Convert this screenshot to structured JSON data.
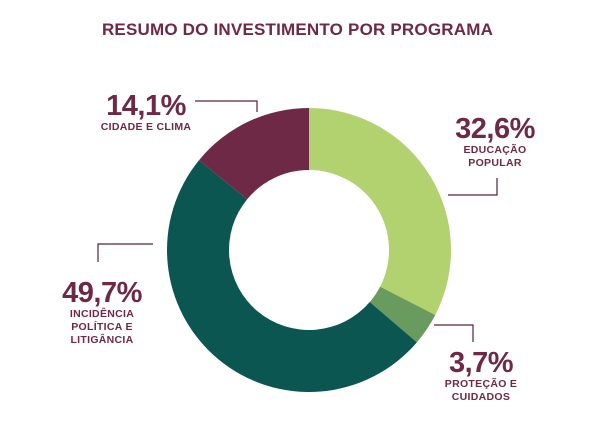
{
  "chart_data": {
    "type": "pie",
    "title": "RESUMO DO INVESTIMENTO POR PROGRAMA",
    "donut": true,
    "unit": "%",
    "slices": [
      {
        "label": "EDUCAÇÃO POPULAR",
        "value": 32.6,
        "value_label": "32,6%",
        "color": "#b2d16f"
      },
      {
        "label": "PROTEÇÃO E CUIDADOS",
        "value": 3.7,
        "value_label": "3,7%",
        "color": "#6a9b5e"
      },
      {
        "label": "INCIDÊNCIA POLÍTICA E LITIGÂNCIA",
        "value": 49.7,
        "value_label": "49,7%",
        "color": "#0b5650"
      },
      {
        "label": "CIDADE E CLIMA",
        "value": 14.1,
        "value_label": "14,1%",
        "color": "#6e2946"
      }
    ]
  }
}
